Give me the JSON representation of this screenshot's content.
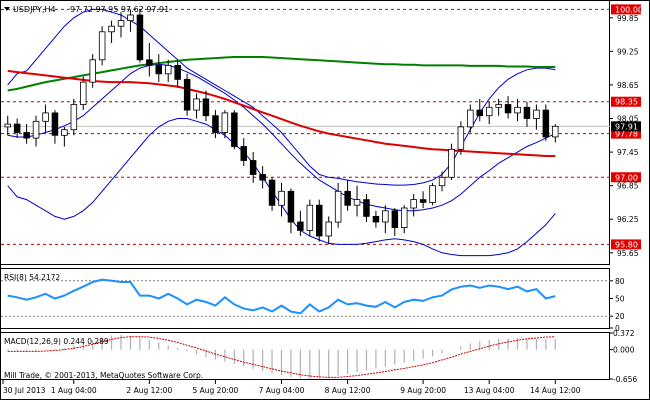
{
  "header": {
    "symbol": "USDJPY,H4",
    "ohlc": "97.72 97.95 97.62 97.91"
  },
  "footer": {
    "copyright": "Mill Trade, © 2001-2013, MetaQuotes Software Corp."
  },
  "colors": {
    "bull": "#ffffff",
    "bear": "#000000",
    "level": "#cc0000",
    "tag_bg": "#e00000",
    "bands": "#0000cc",
    "ma_slow": "#008000",
    "ma_mid": "#dd0000",
    "rsi": "#1e90ff",
    "macd": "#cc0000",
    "last_price_bg": "#000000"
  },
  "chart_data": [
    {
      "type": "candlestick",
      "title": "USDJPY,H4",
      "ylim": [
        95.45,
        100.15
      ],
      "y_ticks": [
        99.85,
        99.25,
        98.65,
        98.05,
        97.45,
        96.85,
        96.25,
        95.65
      ],
      "price_tags": [
        {
          "value": 100.0,
          "label": "100.00"
        },
        {
          "value": 98.35,
          "label": "98.35"
        },
        {
          "value": 97.78,
          "label": "97.78"
        },
        {
          "value": 97.0,
          "label": "97.00"
        },
        {
          "value": 95.8,
          "label": "95.80"
        }
      ],
      "current_price": {
        "value": 97.91,
        "label": "97.91"
      },
      "x_labels": [
        "30 Jul 2013",
        "1 Aug 04:00",
        "2 Aug 12:00",
        "5 Aug 20:00",
        "7 Aug 04:00",
        "8 Aug 12:00",
        "9 Aug 20:00",
        "13 Aug 04:00",
        "14 Aug 12:00"
      ],
      "candles": [
        [
          97.9,
          98.1,
          97.75,
          97.95
        ],
        [
          97.95,
          98.05,
          97.7,
          97.8
        ],
        [
          97.8,
          97.95,
          97.6,
          97.7
        ],
        [
          97.7,
          98.1,
          97.55,
          98.0
        ],
        [
          98.0,
          98.3,
          97.8,
          98.15
        ],
        [
          98.15,
          98.2,
          97.6,
          97.75
        ],
        [
          97.75,
          97.9,
          97.55,
          97.85
        ],
        [
          97.85,
          98.4,
          97.75,
          98.3
        ],
        [
          98.3,
          98.8,
          98.2,
          98.7
        ],
        [
          98.7,
          99.2,
          98.6,
          99.1
        ],
        [
          99.1,
          99.7,
          99.0,
          99.6
        ],
        [
          99.6,
          99.8,
          99.4,
          99.7
        ],
        [
          99.7,
          99.95,
          99.5,
          99.8
        ],
        [
          99.8,
          100.0,
          99.6,
          99.9
        ],
        [
          99.9,
          100.0,
          99.05,
          99.1
        ],
        [
          99.1,
          99.4,
          98.8,
          99.0
        ],
        [
          99.0,
          99.2,
          98.7,
          98.85
        ],
        [
          98.85,
          99.1,
          98.7,
          99.0
        ],
        [
          99.0,
          99.1,
          98.6,
          98.75
        ],
        [
          98.75,
          98.85,
          98.1,
          98.2
        ],
        [
          98.2,
          98.5,
          98.05,
          98.4
        ],
        [
          98.4,
          98.55,
          98.0,
          98.1
        ],
        [
          98.1,
          98.2,
          97.7,
          97.8
        ],
        [
          97.8,
          98.2,
          97.7,
          98.15
        ],
        [
          98.15,
          98.2,
          97.5,
          97.55
        ],
        [
          97.55,
          97.7,
          97.2,
          97.3
        ],
        [
          97.3,
          97.45,
          96.9,
          97.05
        ],
        [
          97.05,
          97.2,
          96.8,
          96.95
        ],
        [
          96.95,
          97.0,
          96.4,
          96.5
        ],
        [
          96.5,
          96.9,
          96.3,
          96.75
        ],
        [
          96.75,
          96.8,
          96.0,
          96.2
        ],
        [
          96.2,
          96.4,
          95.95,
          96.05
        ],
        [
          96.05,
          96.6,
          95.95,
          96.5
        ],
        [
          96.5,
          96.6,
          95.85,
          95.95
        ],
        [
          95.95,
          96.3,
          95.8,
          96.2
        ],
        [
          96.2,
          96.9,
          96.1,
          96.75
        ],
        [
          96.75,
          96.95,
          96.4,
          96.5
        ],
        [
          96.5,
          96.85,
          96.3,
          96.6
        ],
        [
          96.6,
          96.7,
          96.2,
          96.3
        ],
        [
          96.3,
          96.4,
          96.1,
          96.2
        ],
        [
          96.2,
          96.5,
          96.0,
          96.4
        ],
        [
          96.4,
          96.45,
          95.95,
          96.1
        ],
        [
          96.1,
          96.5,
          96.0,
          96.45
        ],
        [
          96.45,
          96.7,
          96.3,
          96.6
        ],
        [
          96.6,
          96.75,
          96.45,
          96.55
        ],
        [
          96.55,
          96.9,
          96.5,
          96.85
        ],
        [
          96.85,
          97.1,
          96.75,
          97.0
        ],
        [
          97.0,
          97.6,
          96.95,
          97.5
        ],
        [
          97.5,
          98.0,
          97.4,
          97.9
        ],
        [
          97.9,
          98.3,
          97.8,
          98.2
        ],
        [
          98.2,
          98.4,
          98.0,
          98.1
        ],
        [
          98.1,
          98.35,
          97.95,
          98.25
        ],
        [
          98.25,
          98.4,
          98.1,
          98.3
        ],
        [
          98.3,
          98.45,
          98.05,
          98.15
        ],
        [
          98.15,
          98.4,
          98.0,
          98.25
        ],
        [
          98.25,
          98.35,
          97.9,
          98.05
        ],
        [
          98.05,
          98.3,
          97.85,
          98.2
        ],
        [
          98.2,
          98.3,
          97.65,
          97.72
        ],
        [
          97.72,
          97.95,
          97.62,
          97.91
        ]
      ],
      "bollinger_upper": [
        98.65,
        98.85,
        98.9,
        99.1,
        99.3,
        99.5,
        99.7,
        99.85,
        99.95,
        100.0,
        100.0,
        99.95,
        99.9,
        99.8,
        99.7,
        99.55,
        99.4,
        99.25,
        99.1,
        98.95,
        98.85,
        98.75,
        98.65,
        98.55,
        98.45,
        98.35,
        98.25,
        98.1,
        97.95,
        97.8,
        97.6,
        97.4,
        97.2,
        97.05,
        97.0,
        96.98,
        96.95,
        96.92,
        96.9,
        96.88,
        96.87,
        96.86,
        96.86,
        96.87,
        96.9,
        96.95,
        97.05,
        97.25,
        97.55,
        97.85,
        98.15,
        98.4,
        98.6,
        98.75,
        98.85,
        98.92,
        98.95,
        98.95,
        98.92
      ],
      "bollinger_middle": [
        97.75,
        97.72,
        97.72,
        97.75,
        97.8,
        97.85,
        97.92,
        98.0,
        98.1,
        98.25,
        98.4,
        98.55,
        98.7,
        98.85,
        98.95,
        99.0,
        99.02,
        99.0,
        98.95,
        98.88,
        98.8,
        98.7,
        98.6,
        98.5,
        98.38,
        98.25,
        98.1,
        97.95,
        97.78,
        97.6,
        97.42,
        97.25,
        97.1,
        96.95,
        96.85,
        96.75,
        96.65,
        96.58,
        96.52,
        96.48,
        96.45,
        96.42,
        96.4,
        96.4,
        96.42,
        96.45,
        96.5,
        96.58,
        96.7,
        96.85,
        97.0,
        97.12,
        97.25,
        97.35,
        97.45,
        97.55,
        97.62,
        97.7,
        97.78
      ],
      "bollinger_lower": [
        96.85,
        96.65,
        96.6,
        96.5,
        96.4,
        96.3,
        96.25,
        96.3,
        96.4,
        96.55,
        96.75,
        96.95,
        97.15,
        97.35,
        97.55,
        97.75,
        97.9,
        98.0,
        98.05,
        98.05,
        98.0,
        97.95,
        97.85,
        97.75,
        97.6,
        97.45,
        97.25,
        97.0,
        96.75,
        96.5,
        96.25,
        96.05,
        95.95,
        95.88,
        95.82,
        95.8,
        95.8,
        95.8,
        95.82,
        95.85,
        95.88,
        95.9,
        95.88,
        95.85,
        95.8,
        95.72,
        95.65,
        95.62,
        95.6,
        95.6,
        95.6,
        95.6,
        95.62,
        95.65,
        95.72,
        95.85,
        96.0,
        96.15,
        96.35
      ],
      "ma_slow": [
        98.55,
        98.58,
        98.62,
        98.66,
        98.7,
        98.73,
        98.76,
        98.79,
        98.82,
        98.85,
        98.88,
        98.91,
        98.94,
        98.97,
        99.0,
        99.02,
        99.04,
        99.06,
        99.08,
        99.1,
        99.11,
        99.12,
        99.13,
        99.14,
        99.15,
        99.15,
        99.15,
        99.15,
        99.14,
        99.13,
        99.12,
        99.11,
        99.1,
        99.09,
        99.08,
        99.07,
        99.06,
        99.05,
        99.04,
        99.03,
        99.02,
        99.02,
        99.01,
        99.01,
        99.0,
        99.0,
        99.0,
        99.0,
        99.0,
        98.99,
        98.99,
        98.99,
        98.99,
        98.98,
        98.98,
        98.98,
        98.97,
        98.97,
        98.97
      ],
      "ma_mid": [
        98.9,
        98.88,
        98.86,
        98.84,
        98.82,
        98.8,
        98.78,
        98.76,
        98.74,
        98.72,
        98.71,
        98.7,
        98.7,
        98.7,
        98.69,
        98.68,
        98.66,
        98.64,
        98.62,
        98.58,
        98.54,
        98.5,
        98.45,
        98.4,
        98.34,
        98.28,
        98.22,
        98.16,
        98.1,
        98.04,
        97.98,
        97.92,
        97.87,
        97.82,
        97.78,
        97.75,
        97.72,
        97.69,
        97.66,
        97.63,
        97.6,
        97.58,
        97.56,
        97.54,
        97.52,
        97.5,
        97.49,
        97.48,
        97.47,
        97.46,
        97.45,
        97.44,
        97.43,
        97.42,
        97.41,
        97.4,
        97.39,
        97.38,
        97.38
      ]
    },
    {
      "type": "line",
      "title": "RSI(8) 54.2172",
      "ylim": [
        0,
        100
      ],
      "y_ticks": [
        80,
        50,
        20,
        0
      ],
      "levels": [
        80,
        20
      ],
      "series": [
        {
          "name": "RSI(8)",
          "values": [
            55,
            52,
            48,
            52,
            58,
            50,
            55,
            63,
            70,
            78,
            82,
            80,
            78,
            78,
            55,
            55,
            50,
            58,
            50,
            40,
            48,
            44,
            38,
            52,
            40,
            33,
            30,
            35,
            28,
            38,
            28,
            25,
            40,
            28,
            35,
            48,
            40,
            42,
            38,
            36,
            44,
            35,
            44,
            48,
            46,
            52,
            55,
            65,
            70,
            72,
            68,
            72,
            70,
            66,
            70,
            62,
            66,
            50,
            54
          ]
        }
      ]
    },
    {
      "type": "bar",
      "title": "MACD(12,26,9) 0.244 0.289",
      "ylim": [
        -0.656,
        0.372
      ],
      "y_ticks": [
        0.372,
        0.0,
        -0.656
      ],
      "series": [
        {
          "name": "histogram",
          "values": [
            -0.02,
            -0.03,
            -0.05,
            -0.03,
            0.0,
            0.02,
            0.04,
            0.09,
            0.14,
            0.21,
            0.28,
            0.32,
            0.33,
            0.31,
            0.27,
            0.22,
            0.16,
            0.1,
            0.04,
            -0.04,
            -0.1,
            -0.16,
            -0.22,
            -0.27,
            -0.32,
            -0.37,
            -0.43,
            -0.48,
            -0.53,
            -0.57,
            -0.61,
            -0.64,
            -0.65,
            -0.64,
            -0.62,
            -0.58,
            -0.54,
            -0.5,
            -0.46,
            -0.42,
            -0.38,
            -0.33,
            -0.29,
            -0.25,
            -0.2,
            -0.15,
            -0.08,
            0.0,
            0.08,
            0.14,
            0.19,
            0.22,
            0.24,
            0.25,
            0.26,
            0.25,
            0.24,
            0.24,
            0.24
          ]
        },
        {
          "name": "signal",
          "values": [
            -0.04,
            -0.04,
            -0.04,
            -0.04,
            -0.03,
            -0.02,
            0.0,
            0.03,
            0.07,
            0.12,
            0.18,
            0.23,
            0.27,
            0.29,
            0.29,
            0.28,
            0.25,
            0.21,
            0.16,
            0.1,
            0.04,
            -0.03,
            -0.1,
            -0.16,
            -0.22,
            -0.28,
            -0.33,
            -0.38,
            -0.43,
            -0.48,
            -0.52,
            -0.56,
            -0.59,
            -0.61,
            -0.62,
            -0.62,
            -0.6,
            -0.58,
            -0.55,
            -0.52,
            -0.49,
            -0.45,
            -0.42,
            -0.38,
            -0.34,
            -0.29,
            -0.23,
            -0.17,
            -0.1,
            -0.04,
            0.02,
            0.08,
            0.13,
            0.17,
            0.21,
            0.24,
            0.26,
            0.28,
            0.29
          ]
        }
      ]
    }
  ]
}
